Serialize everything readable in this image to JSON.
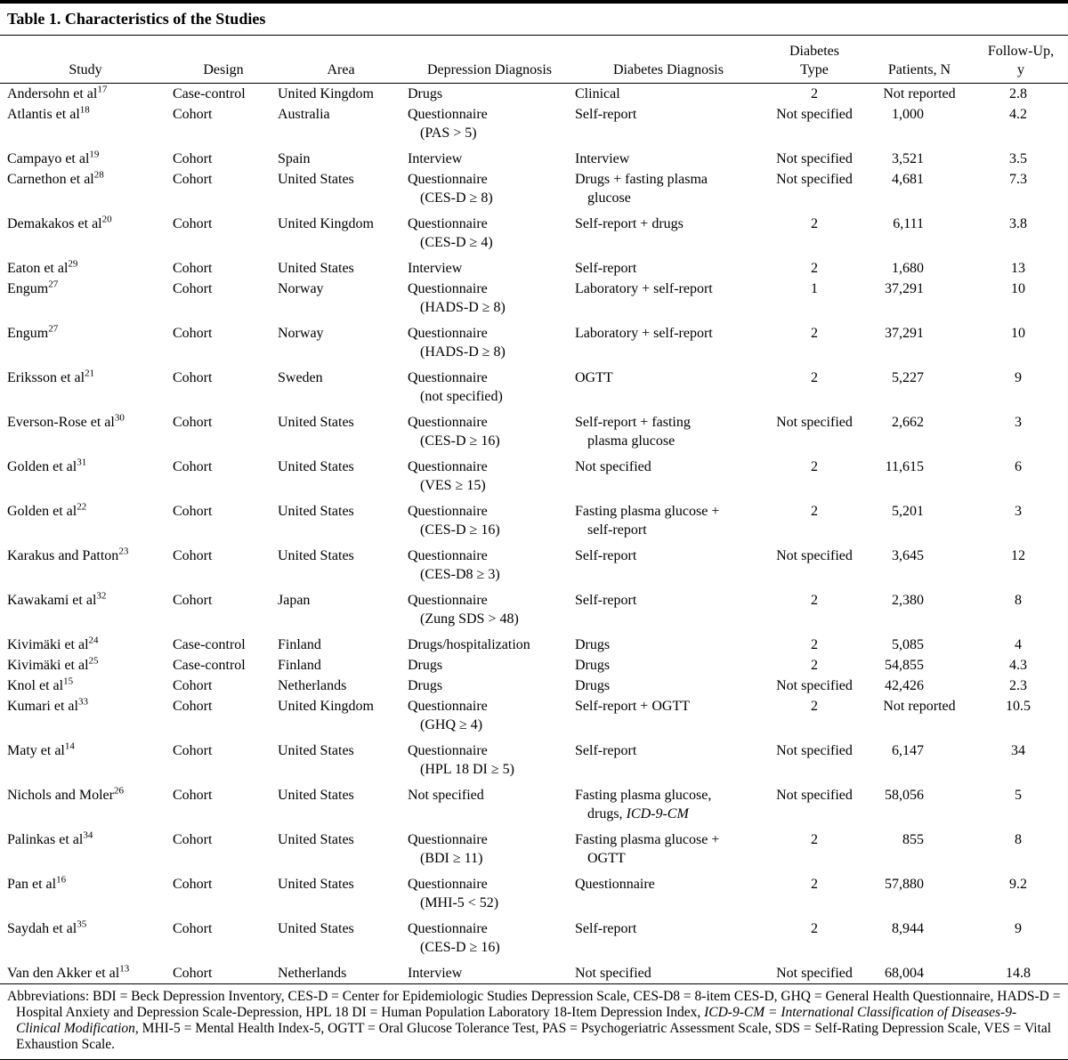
{
  "table": {
    "title": "Table 1. Characteristics of the Studies",
    "columns": [
      {
        "id": "study",
        "lines": [
          "Study"
        ]
      },
      {
        "id": "design",
        "lines": [
          "Design"
        ]
      },
      {
        "id": "area",
        "lines": [
          "Area"
        ]
      },
      {
        "id": "depression_diagnosis",
        "lines": [
          "Depression Diagnosis"
        ]
      },
      {
        "id": "diabetes_diagnosis",
        "lines": [
          "Diabetes Diagnosis"
        ]
      },
      {
        "id": "diabetes_type",
        "lines": [
          "Diabetes",
          "Type"
        ]
      },
      {
        "id": "patients_n",
        "lines": [
          "Patients, N"
        ]
      },
      {
        "id": "follow_up_y",
        "lines": [
          "Follow-Up,",
          "y"
        ]
      }
    ],
    "rows": [
      {
        "name": "Andersohn et al",
        "ref": "17",
        "design": "Case-control",
        "area": "United Kingdom",
        "depression": [
          "Drugs"
        ],
        "diabetes": [
          "Clinical"
        ],
        "type": "2",
        "patients": "Not reported",
        "followup": "2.8"
      },
      {
        "name": "Atlantis et al",
        "ref": "18",
        "design": "Cohort",
        "area": "Australia",
        "depression": [
          "Questionnaire",
          "(PAS > 5)"
        ],
        "diabetes": [
          "Self-report"
        ],
        "type": "Not specified",
        "patients": "1,000",
        "followup": "4.2"
      },
      {
        "name": "Campayo et al",
        "ref": "19",
        "design": "Cohort",
        "area": "Spain",
        "depression": [
          "Interview"
        ],
        "diabetes": [
          "Interview"
        ],
        "type": "Not specified",
        "patients": "3,521",
        "followup": "3.5"
      },
      {
        "name": "Carnethon et al",
        "ref": "28",
        "design": "Cohort",
        "area": "United States",
        "depression": [
          "Questionnaire",
          "(CES-D ≥ 8)"
        ],
        "diabetes": [
          "Drugs + fasting plasma",
          "glucose"
        ],
        "type": "Not specified",
        "patients": "4,681",
        "followup": "7.3"
      },
      {
        "name": "Demakakos et al",
        "ref": "20",
        "design": "Cohort",
        "area": "United Kingdom",
        "depression": [
          "Questionnaire",
          "(CES-D ≥ 4)"
        ],
        "diabetes": [
          "Self-report + drugs"
        ],
        "type": "2",
        "patients": "6,111",
        "followup": "3.8"
      },
      {
        "name": "Eaton et al",
        "ref": "29",
        "design": "Cohort",
        "area": "United States",
        "depression": [
          "Interview"
        ],
        "diabetes": [
          "Self-report"
        ],
        "type": "2",
        "patients": "1,680",
        "followup": "13"
      },
      {
        "name": "Engum",
        "ref": "27",
        "design": "Cohort",
        "area": "Norway",
        "depression": [
          "Questionnaire",
          "(HADS-D ≥ 8)"
        ],
        "diabetes": [
          "Laboratory + self-report"
        ],
        "type": "1",
        "patients": "37,291",
        "followup": "10"
      },
      {
        "name": "Engum",
        "ref": "27",
        "design": "Cohort",
        "area": "Norway",
        "depression": [
          "Questionnaire",
          "(HADS-D ≥ 8)"
        ],
        "diabetes": [
          "Laboratory + self-report"
        ],
        "type": "2",
        "patients": "37,291",
        "followup": "10"
      },
      {
        "name": "Eriksson et al",
        "ref": "21",
        "design": "Cohort",
        "area": "Sweden",
        "depression": [
          "Questionnaire",
          "(not specified)"
        ],
        "diabetes": [
          "OGTT"
        ],
        "type": "2",
        "patients": "5,227",
        "followup": "9"
      },
      {
        "name": "Everson-Rose et al",
        "ref": "30",
        "design": "Cohort",
        "area": "United States",
        "depression": [
          "Questionnaire",
          "(CES-D ≥ 16)"
        ],
        "diabetes": [
          "Self-report + fasting",
          "plasma glucose"
        ],
        "type": "Not specified",
        "patients": "2,662",
        "followup": "3"
      },
      {
        "name": "Golden et al",
        "ref": "31",
        "design": "Cohort",
        "area": "United States",
        "depression": [
          "Questionnaire",
          "(VES ≥ 15)"
        ],
        "diabetes": [
          "Not specified"
        ],
        "type": "2",
        "patients": "11,615",
        "followup": "6"
      },
      {
        "name": "Golden et al",
        "ref": "22",
        "design": "Cohort",
        "area": "United States",
        "depression": [
          "Questionnaire",
          "(CES-D ≥ 16)"
        ],
        "diabetes": [
          "Fasting plasma glucose +",
          "self-report"
        ],
        "type": "2",
        "patients": "5,201",
        "followup": "3"
      },
      {
        "name": "Karakus and Patton",
        "ref": "23",
        "design": "Cohort",
        "area": "United States",
        "depression": [
          "Questionnaire",
          "(CES-D8 ≥ 3)"
        ],
        "diabetes": [
          "Self-report"
        ],
        "type": "Not specified",
        "patients": "3,645",
        "followup": "12"
      },
      {
        "name": "Kawakami et al",
        "ref": "32",
        "design": "Cohort",
        "area": "Japan",
        "depression": [
          "Questionnaire",
          "(Zung SDS > 48)"
        ],
        "diabetes": [
          "Self-report"
        ],
        "type": "2",
        "patients": "2,380",
        "followup": "8"
      },
      {
        "name": "Kivimäki et al",
        "ref": "24",
        "design": "Case-control",
        "area": "Finland",
        "depression": [
          "Drugs/hospitalization"
        ],
        "diabetes": [
          "Drugs"
        ],
        "type": "2",
        "patients": "5,085",
        "followup": "4"
      },
      {
        "name": "Kivimäki et al",
        "ref": "25",
        "design": "Case-control",
        "area": "Finland",
        "depression": [
          "Drugs"
        ],
        "diabetes": [
          "Drugs"
        ],
        "type": "2",
        "patients": "54,855",
        "followup": "4.3"
      },
      {
        "name": "Knol et al",
        "ref": "15",
        "design": "Cohort",
        "area": "Netherlands",
        "depression": [
          "Drugs"
        ],
        "diabetes": [
          "Drugs"
        ],
        "type": "Not specified",
        "patients": "42,426",
        "followup": "2.3"
      },
      {
        "name": "Kumari et al",
        "ref": "33",
        "design": "Cohort",
        "area": "United Kingdom",
        "depression": [
          "Questionnaire",
          "(GHQ ≥ 4)"
        ],
        "diabetes": [
          "Self-report + OGTT"
        ],
        "type": "2",
        "patients": "Not reported",
        "followup": "10.5"
      },
      {
        "name": "Maty et al",
        "ref": "14",
        "design": "Cohort",
        "area": "United States",
        "depression": [
          "Questionnaire",
          "(HPL 18 DI ≥ 5)"
        ],
        "diabetes": [
          "Self-report"
        ],
        "type": "Not specified",
        "patients": "6,147",
        "followup": "34"
      },
      {
        "name": "Nichols and Moler",
        "ref": "26",
        "design": "Cohort",
        "area": "United States",
        "depression": [
          "Not specified"
        ],
        "diabetes": [
          "Fasting plasma glucose,",
          [
            {
              "t": "drugs, "
            },
            {
              "t": "ICD-9-CM",
              "i": true
            }
          ]
        ],
        "type": "Not specified",
        "patients": "58,056",
        "followup": "5"
      },
      {
        "name": "Palinkas et al",
        "ref": "34",
        "design": "Cohort",
        "area": "United States",
        "depression": [
          "Questionnaire",
          "(BDI ≥ 11)"
        ],
        "diabetes": [
          "Fasting plasma glucose +",
          "OGTT"
        ],
        "type": "2",
        "patients": "855",
        "followup": "8"
      },
      {
        "name": "Pan et al",
        "ref": "16",
        "design": "Cohort",
        "area": "United States",
        "depression": [
          "Questionnaire",
          "(MHI-5 < 52)"
        ],
        "diabetes": [
          "Questionnaire"
        ],
        "type": "2",
        "patients": "57,880",
        "followup": "9.2"
      },
      {
        "name": "Saydah et al",
        "ref": "35",
        "design": "Cohort",
        "area": "United States",
        "depression": [
          "Questionnaire",
          "(CES-D ≥ 16)"
        ],
        "diabetes": [
          "Self-report"
        ],
        "type": "2",
        "patients": "8,944",
        "followup": "9"
      },
      {
        "name": "Van den Akker et al",
        "ref": "13",
        "design": "Cohort",
        "area": "Netherlands",
        "depression": [
          "Interview"
        ],
        "diabetes": [
          "Not specified"
        ],
        "type": "Not specified",
        "patients": "68,004",
        "followup": "14.8"
      }
    ],
    "footnote": [
      {
        "t": "Abbreviations: BDI = Beck Depression Inventory, CES-D = Center for Epidemiologic Studies Depression Scale, CES-D8 = 8-item CES-D, GHQ = General Health Questionnaire, HADS-D = Hospital Anxiety and Depression Scale-Depression, HPL 18 DI = Human Population Laboratory 18-Item Depression Index, "
      },
      {
        "t": "ICD-9-CM = International Classification of Diseases-9-Clinical Modification",
        "i": true
      },
      {
        "t": ", MHI-5 = Mental Health Index-5, OGTT = Oral Glucose Tolerance Test, PAS = Psychogeriatric Assessment Scale, SDS = Self-Rating Depression Scale, VES = Vital Exhaustion Scale."
      }
    ]
  }
}
